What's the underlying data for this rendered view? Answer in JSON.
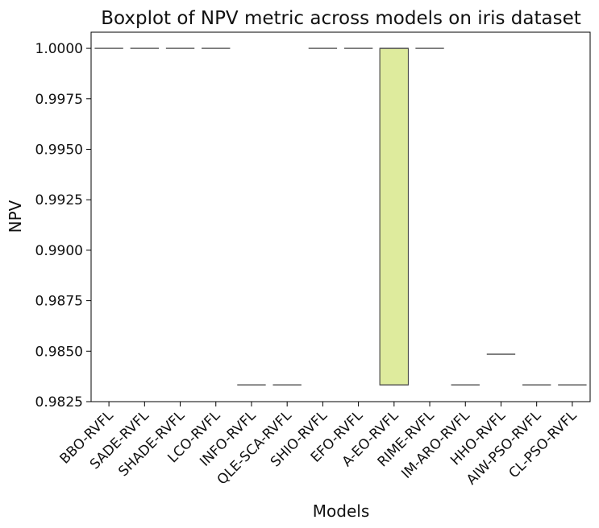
{
  "chart_data": {
    "type": "boxplot",
    "title": "Boxplot of NPV metric across models on iris dataset",
    "xlabel": "Models",
    "ylabel": "NPV",
    "ylim": [
      0.9825,
      1.0008
    ],
    "yticks": [
      "0.9825",
      "0.9850",
      "0.9875",
      "0.9900",
      "0.9925",
      "0.9950",
      "0.9975",
      "1.0000"
    ],
    "grid": false,
    "legend": "none",
    "categories": [
      "BBO-RVFL",
      "SADE-RVFL",
      "SHADE-RVFL",
      "LCO-RVFL",
      "INFO-RVFL",
      "QLE-SCA-RVFL",
      "SHIO-RVFL",
      "EFO-RVFL",
      "A-EO-RVFL",
      "RIME-RVFL",
      "IM-ARO-RVFL",
      "HHO-RVFL",
      "AIW-PSO-RVFL",
      "CL-PSO-RVFL"
    ],
    "boxes": [
      {
        "min": 1.0,
        "q1": 1.0,
        "median": 1.0,
        "q3": 1.0,
        "max": 1.0,
        "color": "#ffffff"
      },
      {
        "min": 1.0,
        "q1": 1.0,
        "median": 1.0,
        "q3": 1.0,
        "max": 1.0,
        "color": "#ffffff"
      },
      {
        "min": 1.0,
        "q1": 1.0,
        "median": 1.0,
        "q3": 1.0,
        "max": 1.0,
        "color": "#ffffff"
      },
      {
        "min": 1.0,
        "q1": 1.0,
        "median": 1.0,
        "q3": 1.0,
        "max": 1.0,
        "color": "#ffffff"
      },
      {
        "min": 0.98333,
        "q1": 0.98333,
        "median": 0.98333,
        "q3": 0.98333,
        "max": 0.98333,
        "color": "#ffffff"
      },
      {
        "min": 0.98333,
        "q1": 0.98333,
        "median": 0.98333,
        "q3": 0.98333,
        "max": 0.98333,
        "color": "#ffffff"
      },
      {
        "min": 1.0,
        "q1": 1.0,
        "median": 1.0,
        "q3": 1.0,
        "max": 1.0,
        "color": "#ffffff"
      },
      {
        "min": 1.0,
        "q1": 1.0,
        "median": 1.0,
        "q3": 1.0,
        "max": 1.0,
        "color": "#ffffff"
      },
      {
        "min": 0.98333,
        "q1": 0.98333,
        "median": 1.0,
        "q3": 1.0,
        "max": 1.0,
        "color": "#deeb9d"
      },
      {
        "min": 1.0,
        "q1": 1.0,
        "median": 1.0,
        "q3": 1.0,
        "max": 1.0,
        "color": "#ffffff"
      },
      {
        "min": 0.98333,
        "q1": 0.98333,
        "median": 0.98333,
        "q3": 0.98333,
        "max": 0.98333,
        "color": "#ffffff"
      },
      {
        "min": 0.98485,
        "q1": 0.98485,
        "median": 0.98485,
        "q3": 0.98485,
        "max": 0.98485,
        "color": "#ffffff"
      },
      {
        "min": 0.98333,
        "q1": 0.98333,
        "median": 0.98333,
        "q3": 0.98333,
        "max": 0.98333,
        "color": "#ffffff"
      },
      {
        "min": 0.98333,
        "q1": 0.98333,
        "median": 0.98333,
        "q3": 0.98333,
        "max": 0.98333,
        "color": "#ffffff"
      }
    ],
    "line_color": "#4d4d4d"
  }
}
